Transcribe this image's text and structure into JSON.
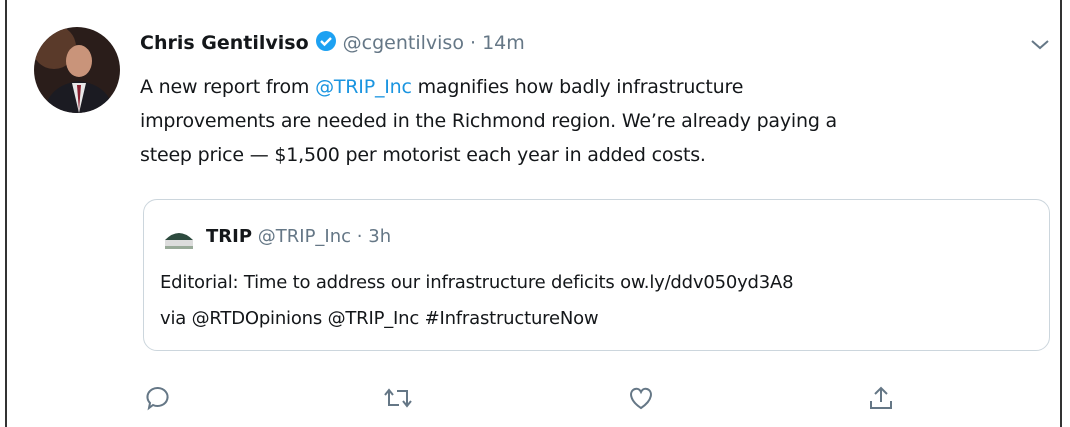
{
  "tweet": {
    "author": {
      "name": "Chris Gentilviso",
      "handle": "@cgentilviso",
      "separator": "·",
      "time": "14m"
    },
    "body": {
      "lines": [
        [
          {
            "text": "A new report from "
          },
          {
            "text": "@TRIP_Inc",
            "link": true
          },
          {
            "text": " magnifies how badly infrastructure"
          }
        ],
        [
          {
            "text": "improvements are needed in the Richmond region. We’re already paying a"
          }
        ],
        [
          {
            "text": "steep price — $1,500 per motorist each year in added costs."
          }
        ]
      ]
    },
    "quoted": {
      "name": "TRIP",
      "handle": "@TRIP_Inc",
      "separator": "·",
      "time": "3h",
      "lines": [
        "Editorial: Time to address our infrastructure deficits ow.ly/ddv050yd3A8",
        "via @RTDOpinions @TRIP_Inc #InfrastructureNow"
      ]
    }
  }
}
